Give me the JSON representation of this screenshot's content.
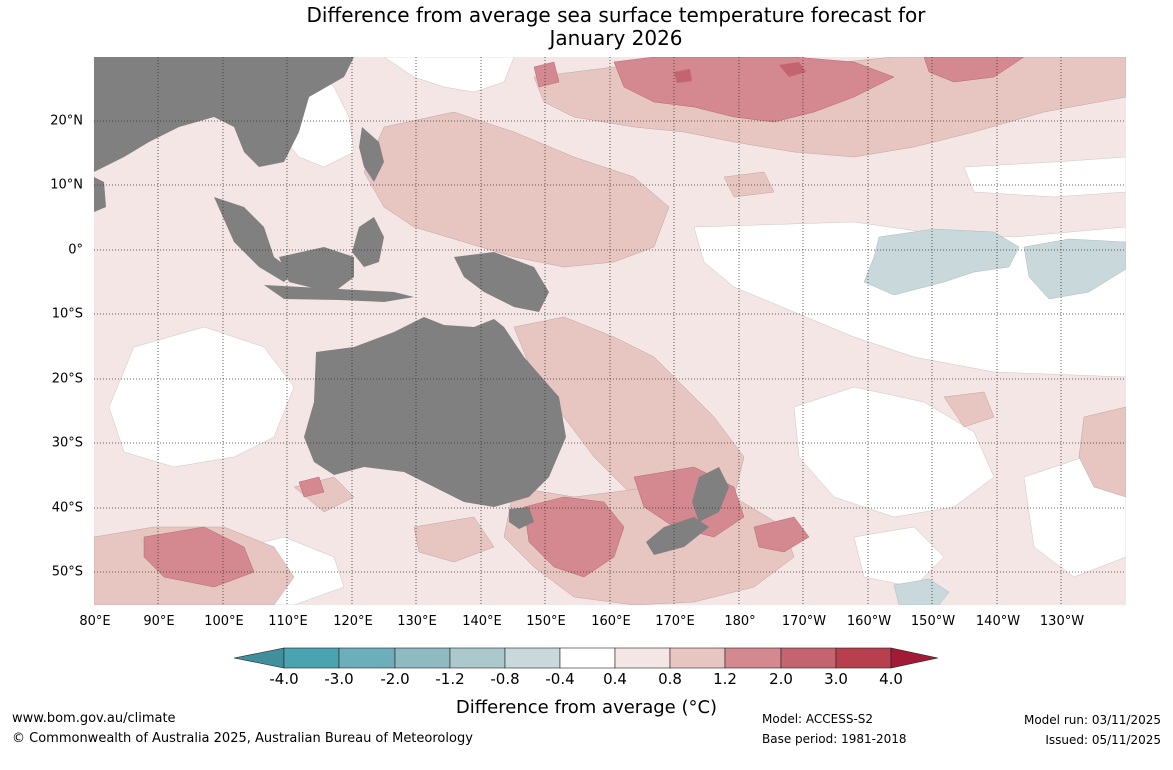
{
  "title": {
    "line1": "Difference from average sea surface temperature forecast for",
    "line2": "January 2026"
  },
  "map": {
    "lat_labels": [
      "20°N",
      "10°N",
      "0°",
      "10°S",
      "20°S",
      "30°S",
      "40°S",
      "50°S"
    ],
    "lon_labels": [
      "80°E",
      "90°E",
      "100°E",
      "110°E",
      "120°E",
      "130°E",
      "140°E",
      "150°E",
      "160°E",
      "170°E",
      "180°",
      "170°W",
      "160°W",
      "150°W",
      "140°W",
      "130°W"
    ],
    "land_color": "#808080",
    "grid_style": "dotted"
  },
  "legend": {
    "label": "Difference from average (°C)",
    "ticks": [
      "-4.0",
      "-3.0",
      "-2.0",
      "-1.2",
      "-0.8",
      "-0.4",
      "0.4",
      "0.8",
      "1.2",
      "2.0",
      "3.0",
      "4.0"
    ],
    "colors": [
      "#3f8f9c",
      "#4ba3b2",
      "#6cafbb",
      "#8fbac2",
      "#abc8cc",
      "#c9d8db",
      "#ffffff",
      "#f4e6e4",
      "#e7c6c2",
      "#d4888f",
      "#c46470",
      "#b8404e",
      "#a31a36"
    ]
  },
  "footer": {
    "website": "www.bom.gov.au/climate",
    "copyright": "© Commonwealth of Australia 2025, Australian Bureau of Meteorology",
    "model": "Model: ACCESS-S2",
    "base_period": "Base period: 1981-2018",
    "model_run": "Model run: 03/11/2025",
    "issued": "Issued: 05/11/2025"
  }
}
